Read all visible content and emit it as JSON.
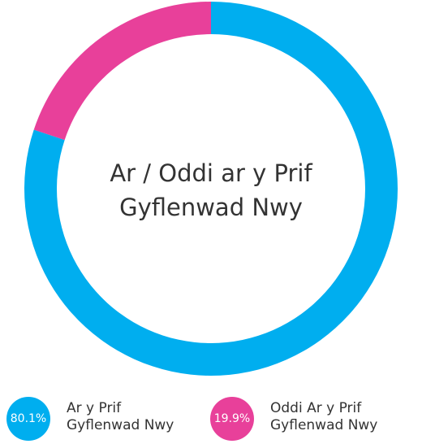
{
  "chart_data": {
    "type": "donut",
    "title": "Ar / Oddi ar y Prif Gyflenwad Nwy",
    "categories": [
      "Ar y Prif Gyflenwad Nwy",
      "Oddi Ar y Prif Gyflenwad Nwy"
    ],
    "values": [
      80.1,
      19.9
    ],
    "value_labels": [
      "80.1%",
      "19.9%"
    ],
    "colors": [
      "#00aeef",
      "#e8409a"
    ],
    "legend": "bottom"
  }
}
